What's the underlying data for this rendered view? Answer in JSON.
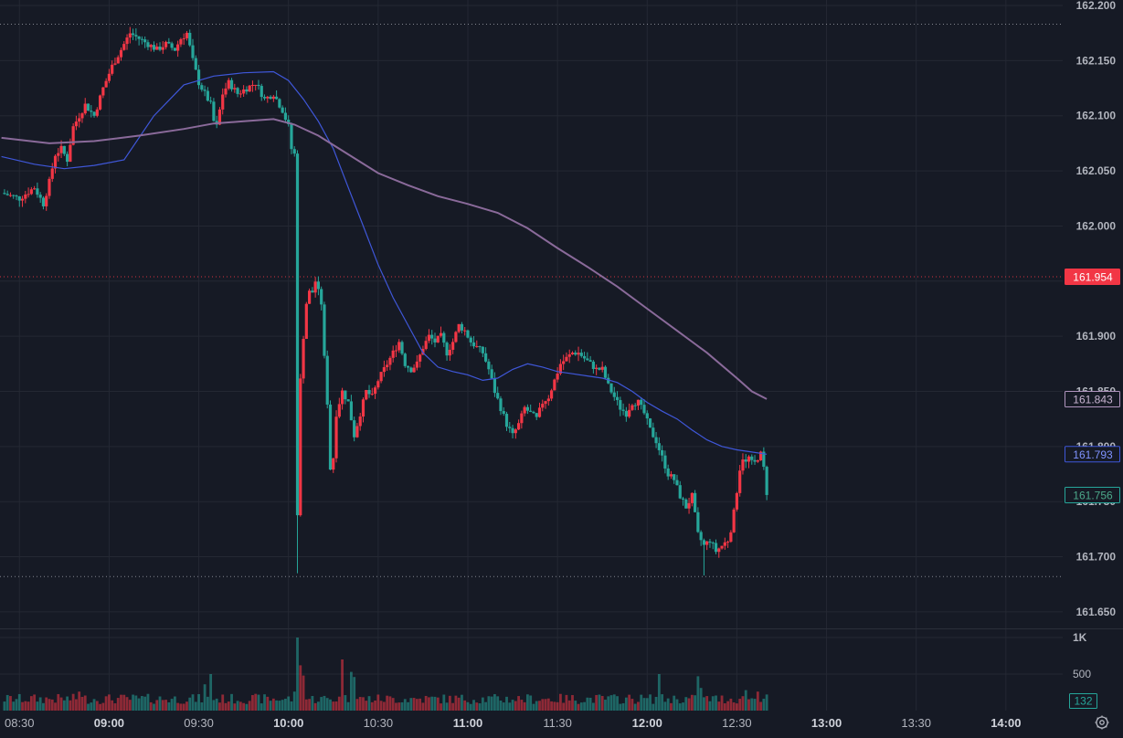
{
  "chart_data": {
    "type": "candlestick",
    "symbol_price_scale": {
      "ticks": [
        "162.200",
        "162.150",
        "162.100",
        "162.050",
        "162.000",
        "161.950",
        "161.900",
        "161.850",
        "161.800",
        "161.750",
        "161.700",
        "161.650"
      ],
      "range": [
        161.635,
        162.205
      ]
    },
    "volume_scale": {
      "ticks": [
        "1K",
        "500"
      ],
      "range": [
        0,
        1100
      ]
    },
    "time_axis": {
      "labels": [
        {
          "text": "08:30",
          "minutes": 0,
          "bold": false
        },
        {
          "text": "09:00",
          "minutes": 30,
          "bold": true
        },
        {
          "text": "09:30",
          "minutes": 60,
          "bold": false
        },
        {
          "text": "10:00",
          "minutes": 90,
          "bold": true
        },
        {
          "text": "10:30",
          "minutes": 120,
          "bold": false
        },
        {
          "text": "11:00",
          "minutes": 150,
          "bold": true
        },
        {
          "text": "11:30",
          "minutes": 180,
          "bold": false
        },
        {
          "text": "12:00",
          "minutes": 210,
          "bold": true
        },
        {
          "text": "12:30",
          "minutes": 240,
          "bold": false
        },
        {
          "text": "13:00",
          "minutes": 270,
          "bold": true
        },
        {
          "text": "13:30",
          "minutes": 300,
          "bold": false
        },
        {
          "text": "14:00",
          "minutes": 330,
          "bold": true
        }
      ],
      "range_minutes": [
        -6.5,
        349
      ]
    },
    "price_path": [
      [
        -6,
        162.03
      ],
      [
        0,
        162.025
      ],
      [
        5,
        162.035
      ],
      [
        8,
        162.02
      ],
      [
        10,
        162.04
      ],
      [
        12,
        162.065
      ],
      [
        14,
        162.07
      ],
      [
        16,
        162.06
      ],
      [
        18,
        162.09
      ],
      [
        20,
        162.1
      ],
      [
        22,
        162.11
      ],
      [
        25,
        162.1
      ],
      [
        28,
        162.125
      ],
      [
        31,
        162.145
      ],
      [
        34,
        162.16
      ],
      [
        37,
        162.175
      ],
      [
        40,
        162.17
      ],
      [
        43,
        162.165
      ],
      [
        46,
        162.16
      ],
      [
        49,
        162.165
      ],
      [
        52,
        162.16
      ],
      [
        54,
        162.17
      ],
      [
        56,
        162.175
      ],
      [
        58,
        162.15
      ],
      [
        60,
        162.13
      ],
      [
        62,
        162.12
      ],
      [
        64,
        162.11
      ],
      [
        65,
        162.095
      ],
      [
        66,
        162.09
      ],
      [
        68,
        162.12
      ],
      [
        70,
        162.13
      ],
      [
        73,
        162.12
      ],
      [
        76,
        162.125
      ],
      [
        79,
        162.13
      ],
      [
        82,
        162.115
      ],
      [
        85,
        162.12
      ],
      [
        88,
        162.105
      ],
      [
        90,
        162.09
      ],
      [
        91,
        162.07
      ],
      [
        92,
        162.065
      ],
      [
        93,
        161.74
      ],
      [
        94,
        161.86
      ],
      [
        95,
        161.9
      ],
      [
        96,
        161.93
      ],
      [
        97,
        161.94
      ],
      [
        98,
        161.94
      ],
      [
        99,
        161.95
      ],
      [
        100,
        161.94
      ],
      [
        101,
        161.93
      ],
      [
        102,
        161.88
      ],
      [
        103,
        161.84
      ],
      [
        104,
        161.78
      ],
      [
        105,
        161.79
      ],
      [
        106,
        161.83
      ],
      [
        107,
        161.84
      ],
      [
        108,
        161.85
      ],
      [
        110,
        161.84
      ],
      [
        112,
        161.81
      ],
      [
        114,
        161.83
      ],
      [
        116,
        161.85
      ],
      [
        118,
        161.845
      ],
      [
        120,
        161.86
      ],
      [
        123,
        161.875
      ],
      [
        125,
        161.885
      ],
      [
        127,
        161.895
      ],
      [
        129,
        161.875
      ],
      [
        131,
        161.87
      ],
      [
        133,
        161.875
      ],
      [
        135,
        161.89
      ],
      [
        137,
        161.9
      ],
      [
        139,
        161.895
      ],
      [
        141,
        161.9
      ],
      [
        143,
        161.885
      ],
      [
        145,
        161.895
      ],
      [
        147,
        161.91
      ],
      [
        149,
        161.905
      ],
      [
        151,
        161.895
      ],
      [
        153,
        161.89
      ],
      [
        155,
        161.885
      ],
      [
        157,
        161.87
      ],
      [
        159,
        161.85
      ],
      [
        161,
        161.835
      ],
      [
        163,
        161.82
      ],
      [
        165,
        161.81
      ],
      [
        167,
        161.82
      ],
      [
        169,
        161.835
      ],
      [
        171,
        161.83
      ],
      [
        173,
        161.825
      ],
      [
        175,
        161.84
      ],
      [
        177,
        161.845
      ],
      [
        179,
        161.86
      ],
      [
        181,
        161.875
      ],
      [
        183,
        161.88
      ],
      [
        185,
        161.885
      ],
      [
        187,
        161.885
      ],
      [
        189,
        161.88
      ],
      [
        191,
        161.875
      ],
      [
        193,
        161.87
      ],
      [
        195,
        161.87
      ],
      [
        197,
        161.855
      ],
      [
        199,
        161.845
      ],
      [
        201,
        161.835
      ],
      [
        203,
        161.83
      ],
      [
        205,
        161.84
      ],
      [
        207,
        161.84
      ],
      [
        209,
        161.83
      ],
      [
        211,
        161.815
      ],
      [
        213,
        161.805
      ],
      [
        215,
        161.79
      ],
      [
        217,
        161.775
      ],
      [
        219,
        161.77
      ],
      [
        221,
        161.755
      ],
      [
        223,
        161.745
      ],
      [
        225,
        161.755
      ],
      [
        227,
        161.72
      ],
      [
        229,
        161.71
      ],
      [
        231,
        161.715
      ],
      [
        233,
        161.705
      ],
      [
        235,
        161.71
      ],
      [
        237,
        161.715
      ],
      [
        238,
        161.725
      ],
      [
        239,
        161.74
      ],
      [
        240,
        161.76
      ],
      [
        241,
        161.78
      ],
      [
        242,
        161.79
      ],
      [
        243,
        161.785
      ],
      [
        244,
        161.79
      ],
      [
        245,
        161.785
      ],
      [
        246,
        161.785
      ],
      [
        247,
        161.79
      ],
      [
        248,
        161.793
      ],
      [
        249,
        161.78
      ],
      [
        250,
        161.756
      ]
    ],
    "last_close": 161.756,
    "series": [
      {
        "name": "MA fast",
        "color": "#3f57d9",
        "points": [
          [
            -6,
            162.063
          ],
          [
            5,
            162.056
          ],
          [
            15,
            162.052
          ],
          [
            25,
            162.055
          ],
          [
            35,
            162.06
          ],
          [
            45,
            162.1
          ],
          [
            55,
            162.128
          ],
          [
            65,
            162.136
          ],
          [
            75,
            162.139
          ],
          [
            85,
            162.14
          ],
          [
            90,
            162.132
          ],
          [
            95,
            162.115
          ],
          [
            100,
            162.095
          ],
          [
            105,
            162.07
          ],
          [
            110,
            162.035
          ],
          [
            115,
            162.0
          ],
          [
            120,
            161.965
          ],
          [
            125,
            161.935
          ],
          [
            130,
            161.91
          ],
          [
            135,
            161.885
          ],
          [
            140,
            161.872
          ],
          [
            145,
            161.868
          ],
          [
            150,
            161.865
          ],
          [
            155,
            161.86
          ],
          [
            160,
            161.862
          ],
          [
            165,
            161.87
          ],
          [
            170,
            161.875
          ],
          [
            175,
            161.872
          ],
          [
            180,
            161.868
          ],
          [
            185,
            161.866
          ],
          [
            190,
            161.864
          ],
          [
            195,
            161.862
          ],
          [
            200,
            161.858
          ],
          [
            205,
            161.85
          ],
          [
            210,
            161.84
          ],
          [
            215,
            161.832
          ],
          [
            220,
            161.825
          ],
          [
            225,
            161.815
          ],
          [
            230,
            161.806
          ],
          [
            235,
            161.8
          ],
          [
            240,
            161.797
          ],
          [
            245,
            161.795
          ],
          [
            250,
            161.793
          ]
        ],
        "label": "161.793"
      },
      {
        "name": "MA slow",
        "color": "#8a6a9a",
        "points": [
          [
            -6,
            162.08
          ],
          [
            10,
            162.075
          ],
          [
            25,
            162.077
          ],
          [
            40,
            162.082
          ],
          [
            55,
            162.088
          ],
          [
            65,
            162.093
          ],
          [
            75,
            162.095
          ],
          [
            85,
            162.097
          ],
          [
            92,
            162.092
          ],
          [
            100,
            162.082
          ],
          [
            110,
            162.065
          ],
          [
            120,
            162.048
          ],
          [
            130,
            162.037
          ],
          [
            140,
            162.027
          ],
          [
            150,
            162.02
          ],
          [
            160,
            162.012
          ],
          [
            170,
            161.998
          ],
          [
            180,
            161.98
          ],
          [
            190,
            161.963
          ],
          [
            200,
            161.945
          ],
          [
            210,
            161.925
          ],
          [
            220,
            161.905
          ],
          [
            230,
            161.885
          ],
          [
            240,
            161.862
          ],
          [
            245,
            161.85
          ],
          [
            250,
            161.843
          ]
        ],
        "label": "161.843"
      }
    ],
    "price_labels": [
      {
        "text": "161.954",
        "value": 161.954,
        "bg": "#f23645",
        "fg": "#ffffff",
        "border": "#f23645"
      },
      {
        "text": "161.843",
        "value": 161.843,
        "bg": "#161a25",
        "fg": "#c7b3d0",
        "border": "#b095be"
      },
      {
        "text": "161.793",
        "value": 161.793,
        "bg": "#161a25",
        "fg": "#7f93ff",
        "border": "#3f57d9"
      },
      {
        "text": "161.756",
        "value": 161.756,
        "bg": "#161a25",
        "fg": "#4ca88a",
        "border": "#26a69a"
      }
    ],
    "horizontal_lines": [
      {
        "value": 162.183,
        "color": "#9598a1",
        "style": "dotted"
      },
      {
        "value": 161.954,
        "color": "#f23645",
        "style": "dotted"
      },
      {
        "value": 161.682,
        "color": "#9598a1",
        "style": "dotted"
      }
    ],
    "volume_label": {
      "text": "132",
      "bg": "#161a25",
      "fg": "#26a69a",
      "border": "#26a69a"
    },
    "colors": {
      "up": "#f23645",
      "down": "#26a69a",
      "grid": "#242833",
      "background": "#161a25",
      "axis_text": "#b2b5be"
    },
    "grid": true
  },
  "controls": {
    "settings_icon": "gear-icon"
  }
}
